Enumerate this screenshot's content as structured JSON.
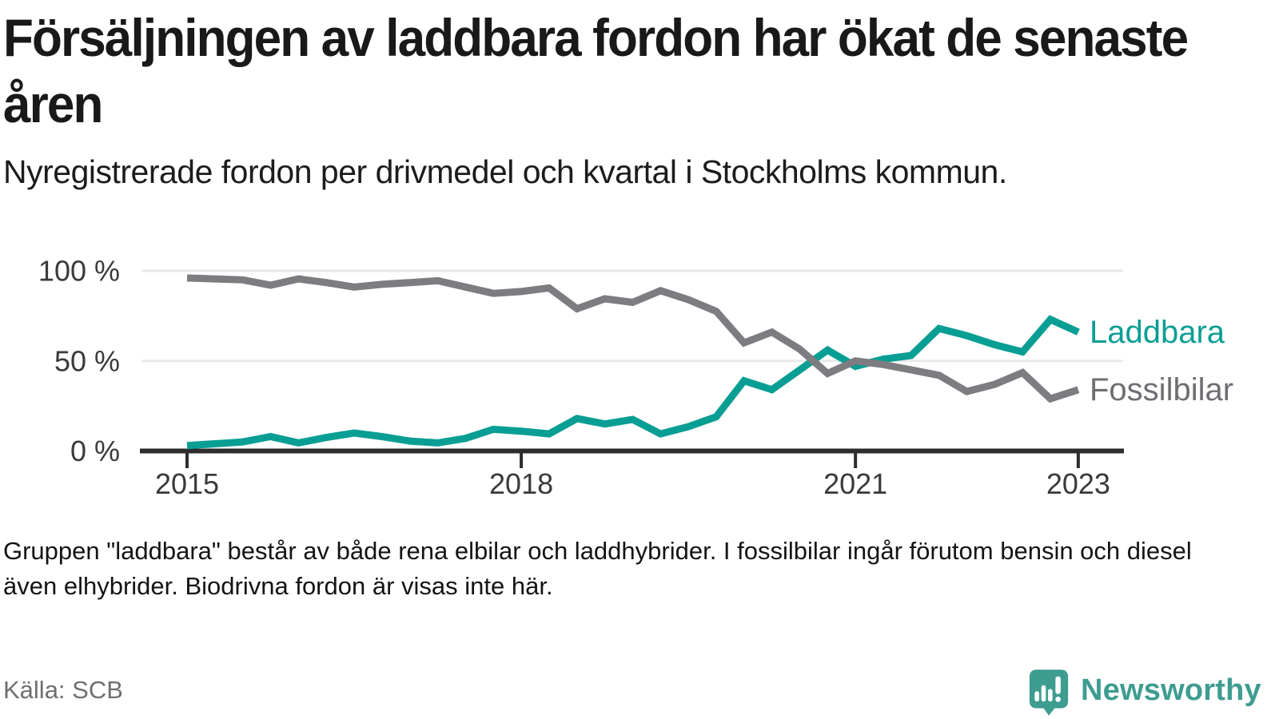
{
  "header": {
    "title": "Försäljningen av laddbara fordon har ökat de senaste åren",
    "subtitle": "Nyregistrerade fordon per drivmedel och kvartal i Stockholms kommun."
  },
  "chart_data": {
    "type": "line",
    "unit": "%",
    "grid": "horizontal",
    "legend_position": "right-end-labels",
    "ylim": [
      0,
      100
    ],
    "y_ticks": [
      {
        "label": "100 %",
        "value": 100
      },
      {
        "label": "50 %",
        "value": 50
      },
      {
        "label": "0 %",
        "value": 0
      }
    ],
    "x": [
      "2015 Q1",
      "2015 Q2",
      "2015 Q3",
      "2015 Q4",
      "2016 Q1",
      "2016 Q2",
      "2016 Q3",
      "2016 Q4",
      "2017 Q1",
      "2017 Q2",
      "2017 Q3",
      "2017 Q4",
      "2018 Q1",
      "2018 Q2",
      "2018 Q3",
      "2018 Q4",
      "2019 Q1",
      "2019 Q2",
      "2019 Q3",
      "2019 Q4",
      "2020 Q1",
      "2020 Q2",
      "2020 Q3",
      "2020 Q4",
      "2021 Q1",
      "2021 Q2",
      "2021 Q3",
      "2021 Q4",
      "2022 Q1",
      "2022 Q2",
      "2022 Q3",
      "2022 Q4",
      "2023 Q1"
    ],
    "x_tick_labels": [
      {
        "label": "2015",
        "index": 0
      },
      {
        "label": "2018",
        "index": 12
      },
      {
        "label": "2021",
        "index": 24
      },
      {
        "label": "2023",
        "index": 32
      }
    ],
    "series": [
      {
        "name": "Laddbara",
        "color": "#089E94",
        "label_color": "#0A9E94",
        "values": [
          3,
          4,
          5,
          8,
          4.5,
          7.5,
          10,
          8,
          5.5,
          4.5,
          7,
          12,
          11,
          9.5,
          18,
          15,
          17.5,
          9.5,
          13.5,
          19,
          39,
          34,
          45,
          56,
          47,
          51,
          53,
          68,
          64,
          59,
          55,
          73,
          66
        ]
      },
      {
        "name": "Fossilbilar",
        "color": "#7C7C81",
        "label_color": "#6E6E73",
        "values": [
          96,
          95.5,
          95,
          92,
          95.5,
          93.5,
          91,
          92.5,
          93.5,
          94.5,
          91,
          87.5,
          88.5,
          90.5,
          79,
          84.5,
          82.5,
          89,
          84,
          77.5,
          60,
          66,
          56.5,
          43,
          50,
          48,
          45,
          42,
          33,
          37,
          43.5,
          29,
          34
        ]
      }
    ]
  },
  "footnote": "Gruppen \"laddbara\" består av både rena elbilar och laddhybrider. I fossilbilar ingår förutom bensin och diesel även elhybrider. Biodrivna fordon är visas inte här.",
  "source": "Källa: SCB",
  "branding": {
    "logo_text": "Newsworthy",
    "logo_color": "#3E9C90"
  }
}
